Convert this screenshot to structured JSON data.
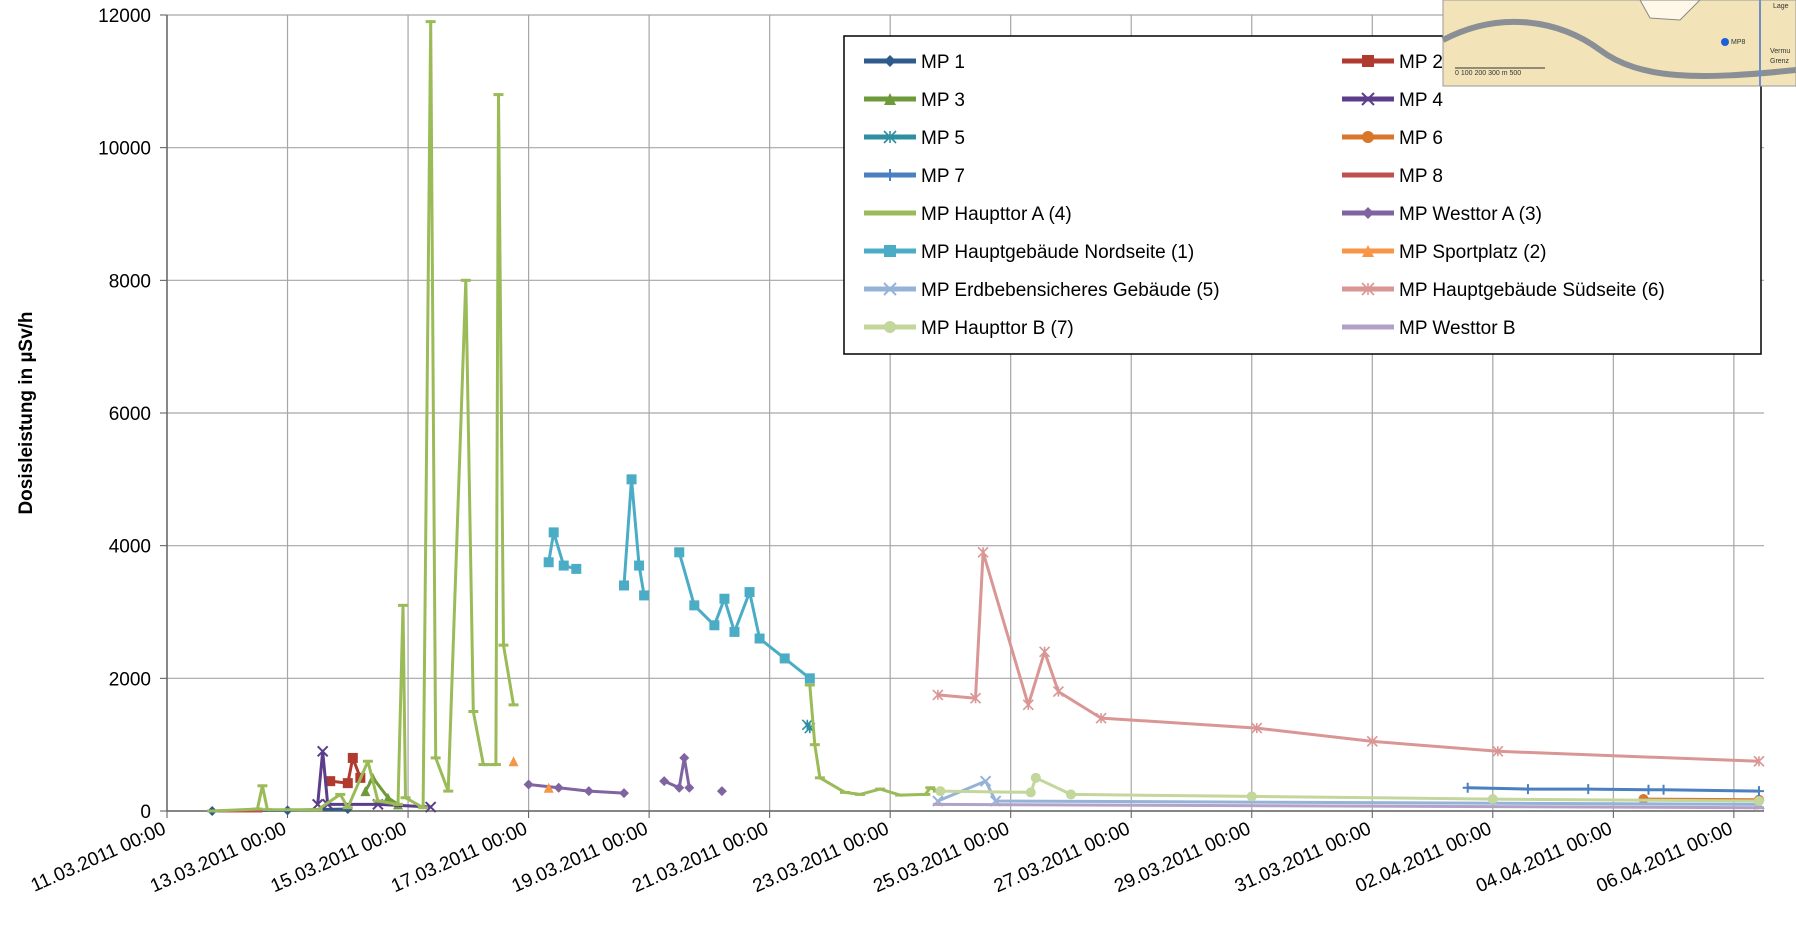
{
  "chart_data": {
    "type": "line",
    "y_label": "Dosisleistung in µSv/h",
    "ylim": [
      0,
      12000
    ],
    "yticks": [
      0,
      2000,
      4000,
      6000,
      8000,
      10000,
      12000
    ],
    "xlim": [
      "11.03.2011 00:00",
      "06.04.2011 12:00"
    ],
    "xticks": [
      "11.03.2011 00:00",
      "13.03.2011 00:00",
      "15.03.2011 00:00",
      "17.03.2011 00:00",
      "19.03.2011 00:00",
      "21.03.2011 00:00",
      "23.03.2011 00:00",
      "25.03.2011 00:00",
      "27.03.2011 00:00",
      "29.03.2011 00:00",
      "31.03.2011 00:00",
      "02.04.2011 00:00",
      "04.04.2011 00:00",
      "06.04.2011 00:00"
    ],
    "grid": true,
    "legend_position": "upper right",
    "series": [
      {
        "name": "MP 1",
        "color": "#2f5a8c",
        "marker": "diamond",
        "x": [
          "11.03.2011 18:00",
          "13.03.2011 00:00",
          "14.03.2011 00:00"
        ],
        "values": [
          0,
          10,
          30
        ]
      },
      {
        "name": "MP 2",
        "color": "#b03a30",
        "marker": "square",
        "x": [
          "13.03.2011 17:00",
          "14.03.2011 00:00",
          "14.03.2011 02:00",
          "14.03.2011 05:00"
        ],
        "values": [
          450,
          420,
          800,
          500
        ]
      },
      {
        "name": "MP 3",
        "color": "#6e9a3a",
        "marker": "triangle",
        "x": [
          "14.03.2011 07:00",
          "14.03.2011 10:00",
          "14.03.2011 16:00",
          "14.03.2011 20:00"
        ],
        "values": [
          300,
          500,
          200,
          100
        ]
      },
      {
        "name": "MP 4",
        "color": "#5b3d8a",
        "marker": "x",
        "x": [
          "13.03.2011 12:00",
          "13.03.2011 14:00",
          "13.03.2011 16:00",
          "14.03.2011 12:00",
          "15.03.2011 09:00"
        ],
        "values": [
          100,
          900,
          100,
          100,
          60
        ]
      },
      {
        "name": "MP 5",
        "color": "#2e8fa0",
        "marker": "asterisk",
        "x": [
          "21.03.2011 15:00",
          "21.03.2011 16:00"
        ],
        "values": [
          1300,
          1250
        ]
      },
      {
        "name": "MP 6",
        "color": "#d9762a",
        "marker": "circle",
        "x": [
          "04.04.2011 12:00",
          "06.04.2011 10:00"
        ],
        "values": [
          180,
          170
        ]
      },
      {
        "name": "MP 7",
        "color": "#4a7fc1",
        "marker": "plus",
        "x": [
          "01.04.2011 14:00",
          "02.04.2011 14:00",
          "03.04.2011 14:00",
          "04.04.2011 14:00",
          "04.04.2011 20:00",
          "06.04.2011 10:00"
        ],
        "values": [
          350,
          330,
          330,
          320,
          320,
          300
        ]
      },
      {
        "name": "MP 8",
        "color": "#c0504d",
        "marker": "dash",
        "x": [
          "12.03.2011 00:00",
          "12.03.2011 12:00"
        ],
        "values": [
          0,
          0
        ]
      },
      {
        "name": "MP Haupttor A (4)",
        "color": "#9bbb59",
        "marker": "dash",
        "x": [
          "11.03.2011 18:00",
          "12.03.2011 12:00",
          "12.03.2011 14:00",
          "12.03.2011 16:00",
          "13.03.2011 12:00",
          "13.03.2011 21:00",
          "14.03.2011 00:00",
          "14.03.2011 08:00",
          "14.03.2011 12:00",
          "14.03.2011 20:00",
          "14.03.2011 22:00",
          "14.03.2011 23:00",
          "15.03.2011 06:00",
          "15.03.2011 09:00",
          "15.03.2011 11:00",
          "15.03.2011 16:00",
          "15.03.2011 23:00",
          "16.03.2011 02:00",
          "16.03.2011 06:00",
          "16.03.2011 11:00",
          "16.03.2011 12:00",
          "16.03.2011 14:00",
          "16.03.2011 18:00",
          null,
          "21.03.2011 16:00",
          "21.03.2011 18:00",
          "21.03.2011 20:00",
          "22.03.2011 06:00",
          "22.03.2011 12:00",
          "22.03.2011 20:00",
          "23.03.2011 04:00",
          "23.03.2011 14:00",
          "23.03.2011 16:00",
          "23.03.2011 19:00"
        ],
        "values": [
          0,
          30,
          380,
          20,
          20,
          250,
          50,
          750,
          150,
          100,
          3100,
          200,
          50,
          11900,
          800,
          300,
          8000,
          1500,
          700,
          700,
          10800,
          2500,
          1600,
          null,
          1900,
          1000,
          500,
          280,
          250,
          330,
          240,
          250,
          350,
          300
        ]
      },
      {
        "name": "MP Westtor A (3)",
        "color": "#8064a2",
        "marker": "diamond",
        "x": [
          "17.03.2011 00:00",
          "17.03.2011 12:00",
          "18.03.2011 00:00",
          "18.03.2011 14:00",
          null,
          "19.03.2011 06:00",
          "19.03.2011 12:00",
          "19.03.2011 14:00",
          "19.03.2011 16:00",
          null,
          "20.03.2011 05:00"
        ],
        "values": [
          400,
          350,
          300,
          270,
          null,
          450,
          350,
          800,
          350,
          null,
          300
        ]
      },
      {
        "name": "MP Hauptgebäude Nordseite (1)",
        "color": "#4bacc6",
        "marker": "square",
        "x": [
          "17.03.2011 08:00",
          "17.03.2011 10:00",
          "17.03.2011 14:00",
          "17.03.2011 19:00",
          null,
          "18.03.2011 14:00",
          "18.03.2011 17:00",
          "18.03.2011 20:00",
          "18.03.2011 22:00",
          null,
          "19.03.2011 12:00",
          "19.03.2011 18:00",
          "20.03.2011 02:00",
          "20.03.2011 06:00",
          "20.03.2011 10:00",
          "20.03.2011 16:00",
          "20.03.2011 20:00",
          "21.03.2011 06:00",
          "21.03.2011 16:00"
        ],
        "values": [
          3750,
          4200,
          3700,
          3650,
          null,
          3400,
          5000,
          3700,
          3250,
          null,
          3900,
          3100,
          2800,
          3200,
          2700,
          3300,
          2600,
          2300,
          2000
        ]
      },
      {
        "name": "MP Sportplatz (2)",
        "color": "#f79646",
        "marker": "triangle",
        "x": [
          "16.03.2011 18:00",
          null,
          "17.03.2011 08:00"
        ],
        "values": [
          750,
          null,
          350
        ]
      },
      {
        "name": "MP Erdbebensicheres Gebäude (5)",
        "color": "#95b3d7",
        "marker": "x",
        "x": [
          "23.03.2011 19:00",
          "24.03.2011 14:00",
          "24.03.2011 18:00",
          "06.04.2011 10:00"
        ],
        "values": [
          150,
          450,
          150,
          100
        ]
      },
      {
        "name": "MP Hauptgebäude Südseite (6)",
        "color": "#d99694",
        "marker": "asterisk",
        "x": [
          "23.03.2011 19:00",
          "24.03.2011 10:00",
          "24.03.2011 13:00",
          "25.03.2011 07:00",
          "25.03.2011 13:30",
          "25.03.2011 19:00",
          "26.03.2011 12:00",
          "29.03.2011 02:00",
          "31.03.2011 00:00",
          "02.04.2011 02:00",
          "06.04.2011 10:00"
        ],
        "values": [
          1750,
          1700,
          3900,
          1600,
          2400,
          1800,
          1400,
          1250,
          1050,
          900,
          750
        ]
      },
      {
        "name": "MP Haupttor B (7)",
        "color": "#c3d69b",
        "marker": "circle",
        "x": [
          "23.03.2011 20:00",
          "25.03.2011 08:00",
          "25.03.2011 10:00",
          "26.03.2011 00:00",
          "29.03.2011 00:00",
          "02.04.2011 00:00",
          "06.04.2011 10:00"
        ],
        "values": [
          300,
          280,
          500,
          250,
          220,
          180,
          150
        ]
      },
      {
        "name": "MP Westtor B",
        "color": "#b3a2c7",
        "marker": "dash",
        "x": [
          "23.03.2011 19:00",
          "06.04.2011 10:00"
        ],
        "values": [
          100,
          50
        ]
      }
    ]
  },
  "inset_map": {
    "labels": [
      "Lage",
      "MP8",
      "Vermu",
      "Grenz",
      "0  100  200  300   m   500"
    ]
  }
}
